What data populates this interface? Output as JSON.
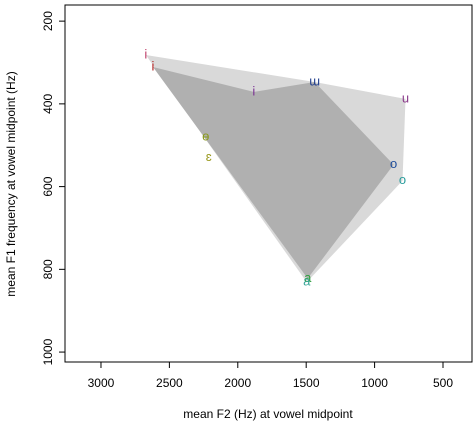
{
  "chart_data": {
    "type": "scatter",
    "xlabel": "mean F2 (Hz) at vowel midpoint",
    "ylabel": "mean F1 frequency at vowel midpoint (Hz)",
    "labels": [
      "i",
      "i",
      "i",
      "ɯ",
      "u",
      "o",
      "o",
      "ɵ",
      "ɛ",
      "a",
      "a"
    ],
    "x": [
      2672,
      2620,
      1883,
      1438,
      774,
      861,
      796,
      2234,
      2212,
      1489,
      1496
    ],
    "y": [
      282,
      311,
      371,
      347,
      388,
      547,
      586,
      480,
      530,
      822,
      831
    ],
    "colors": [
      "#c0406a",
      "#b22222",
      "#7b3294",
      "#23408e",
      "#8b3a8b",
      "#1f4e9c",
      "#2a9d9d",
      "#8a9a1c",
      "#9a9a20",
      "#2e9e3e",
      "#3aa89a"
    ],
    "xlim": [
      3263,
      288
    ],
    "ylim": [
      1024,
      161
    ],
    "xticks": [
      3000,
      2500,
      2000,
      1500,
      1000,
      500
    ],
    "yticks": [
      200,
      400,
      600,
      800,
      1000
    ]
  }
}
